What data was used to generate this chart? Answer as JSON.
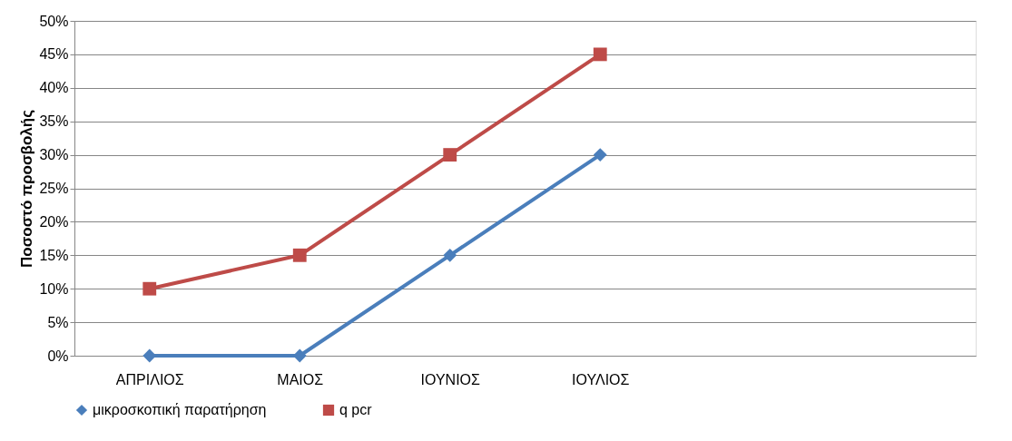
{
  "chart_data": {
    "type": "line",
    "ylabel": "Ποσοστό προσβολής",
    "categories": [
      "ΑΠΡΙΛΙΟΣ",
      "ΜΑΙΟΣ",
      "ΙΟΥΝΙΟΣ",
      "ΙΟΥΛΙΟΣ",
      null,
      null
    ],
    "series": [
      {
        "name": "μικροσκοπική παρατήρηση",
        "color": "#4a7ebb",
        "marker": "diamond",
        "values": [
          0,
          0,
          15,
          30,
          null,
          null
        ]
      },
      {
        "name": "q pcr",
        "color": "#be4b48",
        "marker": "square",
        "values": [
          10,
          15,
          30,
          45,
          null,
          null
        ]
      }
    ],
    "ylim": [
      0,
      50
    ],
    "yticks": [
      {
        "value": 0,
        "label": "0%"
      },
      {
        "value": 5,
        "label": "5%"
      },
      {
        "value": 10,
        "label": "10%"
      },
      {
        "value": 15,
        "label": "15%"
      },
      {
        "value": 20,
        "label": "20%"
      },
      {
        "value": 25,
        "label": "25%"
      },
      {
        "value": 30,
        "label": "30%"
      },
      {
        "value": 35,
        "label": "35%"
      },
      {
        "value": 40,
        "label": "40%"
      },
      {
        "value": 45,
        "label": "45%"
      },
      {
        "value": 50,
        "label": "50%"
      }
    ],
    "grid": "y",
    "legend": "bottom",
    "line_style": "solid"
  }
}
